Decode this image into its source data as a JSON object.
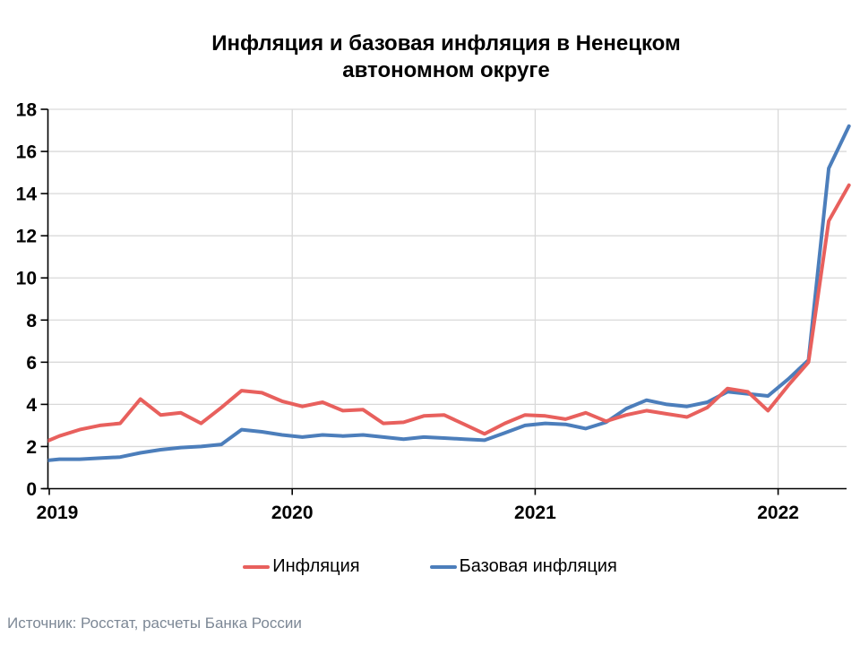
{
  "chart_data": {
    "type": "line",
    "title": "Инфляция и базовая инфляция в Ненецком автономном округе",
    "title_lines": [
      "Инфляция и базовая инфляция в Ненецком",
      "автономном округе"
    ],
    "x": [
      "2018-12",
      "2019-01",
      "2019-02",
      "2019-03",
      "2019-04",
      "2019-05",
      "2019-06",
      "2019-07",
      "2019-08",
      "2019-09",
      "2019-10",
      "2019-11",
      "2019-12",
      "2020-01",
      "2020-02",
      "2020-03",
      "2020-04",
      "2020-05",
      "2020-06",
      "2020-07",
      "2020-08",
      "2020-09",
      "2020-10",
      "2020-11",
      "2020-12",
      "2021-01",
      "2021-02",
      "2021-03",
      "2021-04",
      "2021-05",
      "2021-06",
      "2021-07",
      "2021-08",
      "2021-09",
      "2021-10",
      "2021-11",
      "2021-12",
      "2022-01",
      "2022-02",
      "2022-03",
      "2022-04"
    ],
    "x_tick_labels": [
      "2019",
      "2020",
      "2021",
      "2022"
    ],
    "y_ticks": [
      0,
      2,
      4,
      6,
      8,
      10,
      12,
      14,
      16,
      18
    ],
    "ylim": [
      0,
      18
    ],
    "grid": "horizontal gridlines every 2, vertical gridlines at year starts",
    "legend_position": "bottom",
    "series": [
      {
        "name": "Инфляция",
        "color": "#E8605D",
        "values": [
          2.1,
          2.5,
          2.8,
          3.0,
          3.1,
          4.25,
          3.5,
          3.6,
          3.1,
          3.85,
          4.65,
          4.55,
          4.15,
          3.9,
          4.1,
          3.7,
          3.75,
          3.1,
          3.15,
          3.45,
          3.5,
          3.05,
          2.6,
          3.1,
          3.5,
          3.45,
          3.3,
          3.6,
          3.2,
          3.5,
          3.7,
          3.55,
          3.4,
          3.85,
          4.75,
          4.6,
          3.7,
          4.9,
          6.0,
          12.7,
          14.4
        ]
      },
      {
        "name": "Базовая инфляция",
        "color": "#4C7EBB",
        "values": [
          1.3,
          1.4,
          1.4,
          1.45,
          1.5,
          1.7,
          1.85,
          1.95,
          2.0,
          2.1,
          2.8,
          2.7,
          2.55,
          2.45,
          2.55,
          2.5,
          2.55,
          2.45,
          2.35,
          2.45,
          2.4,
          2.35,
          2.3,
          2.65,
          3.0,
          3.1,
          3.05,
          2.85,
          3.15,
          3.8,
          4.2,
          4.0,
          3.9,
          4.1,
          4.6,
          4.5,
          4.4,
          5.2,
          6.1,
          15.2,
          17.2
        ]
      }
    ],
    "source": "Источник: Росстат, расчеты Банка России",
    "colors": {
      "grid": "#D9D9D9",
      "axis": "#000000",
      "tick_label": "#000000",
      "source_text": "#7C8795"
    }
  }
}
